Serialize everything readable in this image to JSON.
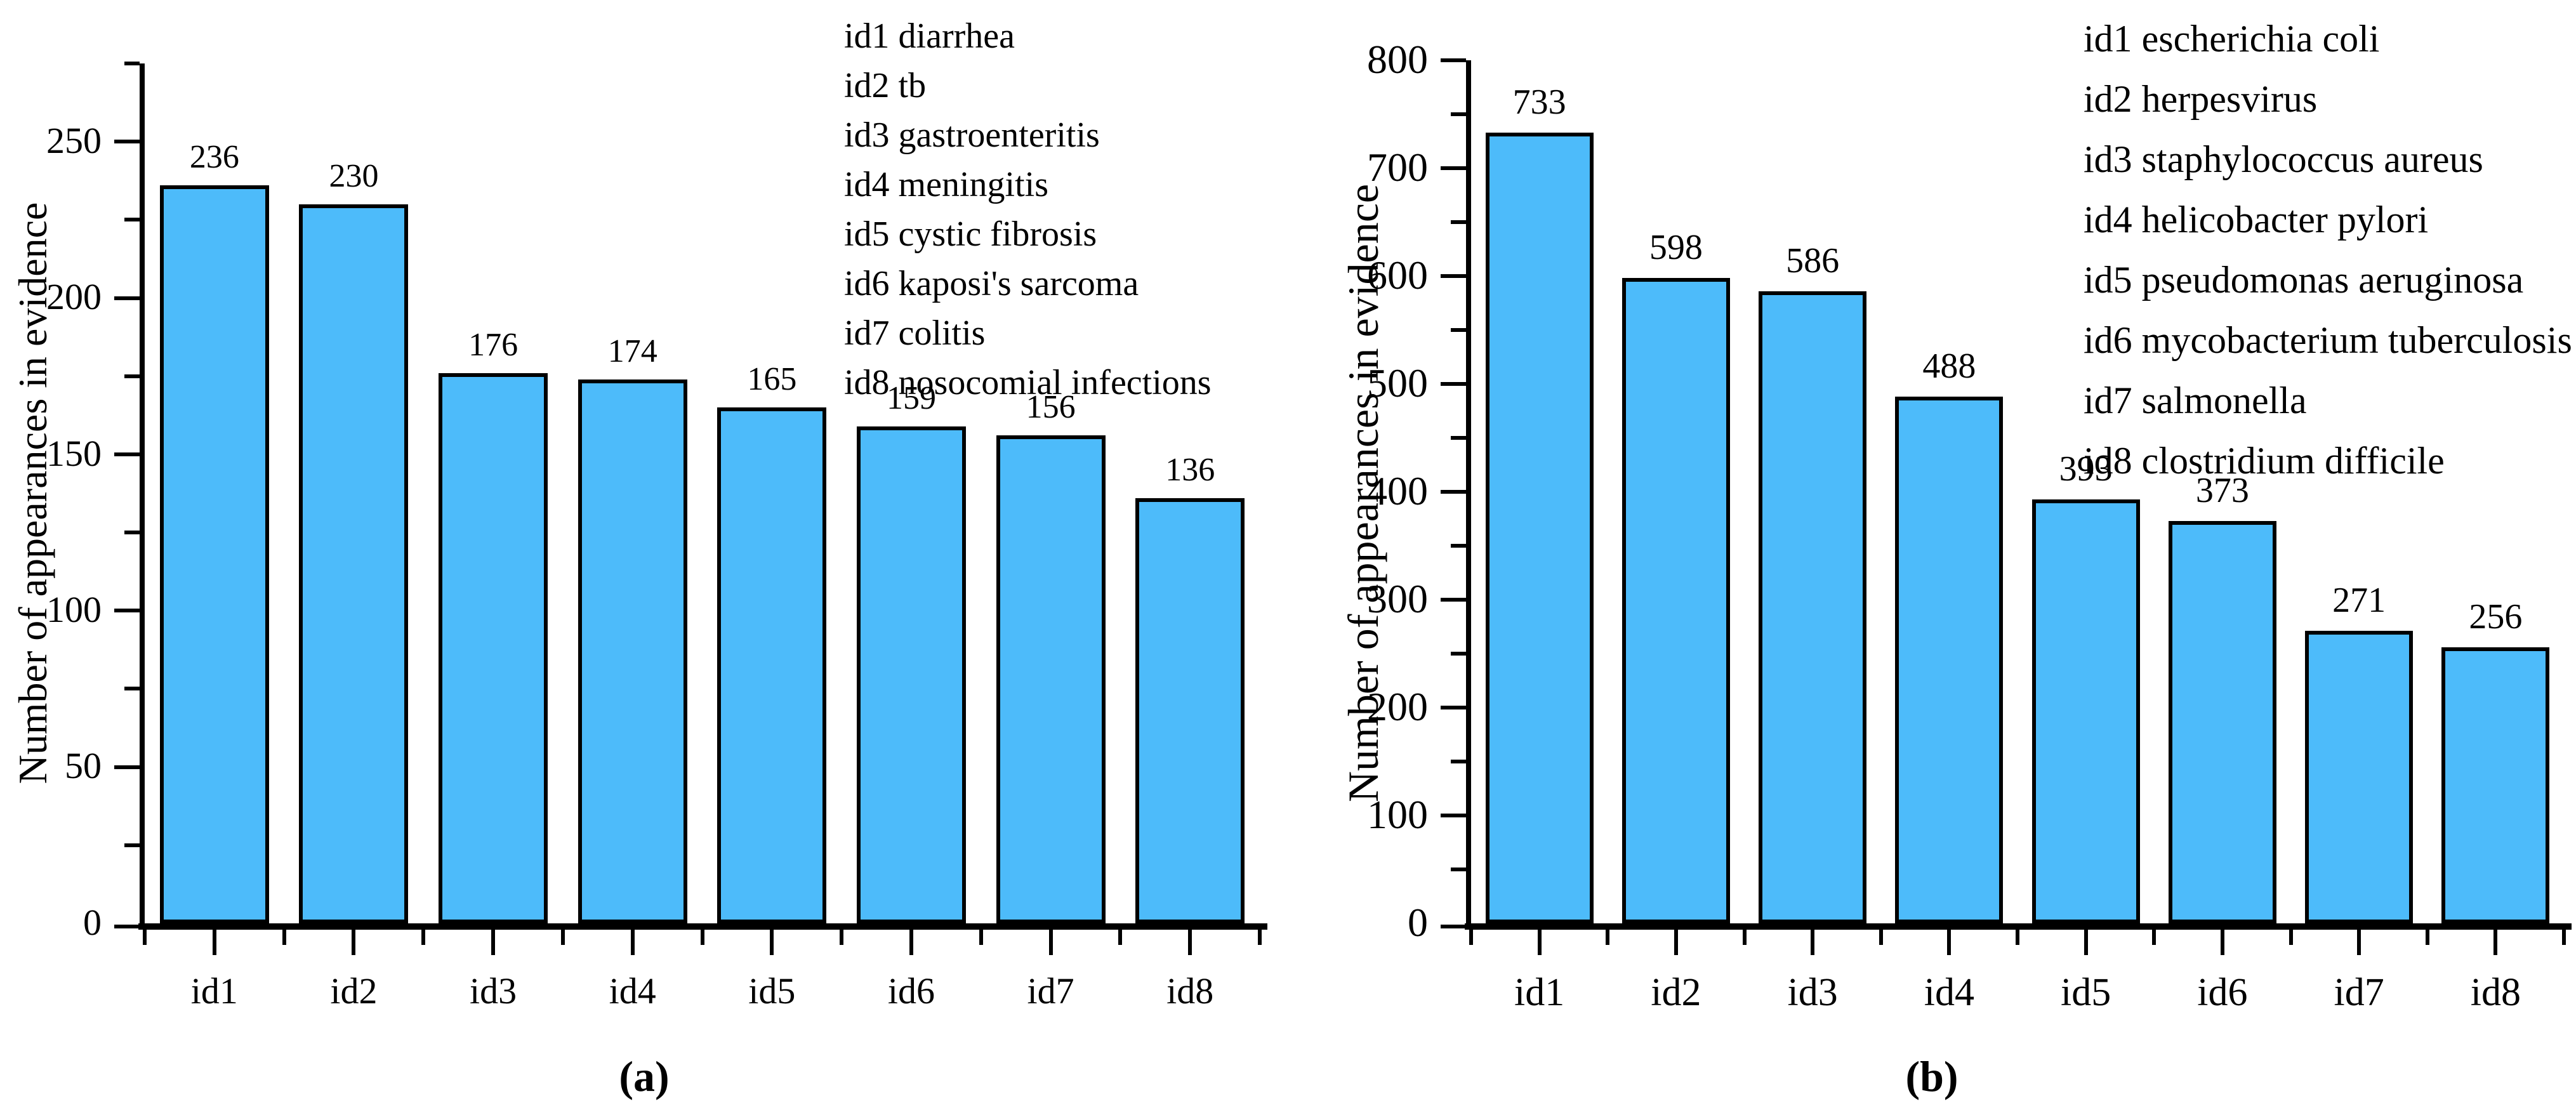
{
  "figure": {
    "background": "#FFFFFF"
  },
  "colors": {
    "bar_fill": "#4DBBFA",
    "bar_border": "#000000",
    "axis": "#000000",
    "text": "#000000"
  },
  "chart_data": [
    {
      "type": "bar",
      "panel": "a",
      "caption": "(a)",
      "ylabel": "Number of appearances in evidence",
      "xlabel": "",
      "categories": [
        "id1",
        "id2",
        "id3",
        "id4",
        "id5",
        "id6",
        "id7",
        "id8"
      ],
      "values": [
        236,
        230,
        176,
        174,
        165,
        159,
        156,
        136
      ],
      "ylim": [
        0,
        275
      ],
      "ytick_interval": 50,
      "ytick_minor_interval": 25,
      "ytick_labels": [
        "0",
        "50",
        "100",
        "150",
        "200",
        "250"
      ],
      "grid": false,
      "legend_position": "top-right-inside",
      "legend": [
        "id1 diarrhea",
        "id2 tb",
        "id3 gastroenteritis",
        "id4 meningitis",
        "id5 cystic fibrosis",
        "id6 kaposi's sarcoma",
        "id7 colitis",
        "id8 nosocomial infections"
      ]
    },
    {
      "type": "bar",
      "panel": "b",
      "caption": "(b)",
      "ylabel": "Number of appearances in evidence",
      "xlabel": "",
      "categories": [
        "id1",
        "id2",
        "id3",
        "id4",
        "id5",
        "id6",
        "id7",
        "id8"
      ],
      "values": [
        733,
        598,
        586,
        488,
        393,
        373,
        271,
        256
      ],
      "ylim": [
        0,
        800
      ],
      "ytick_interval": 100,
      "ytick_minor_interval": 50,
      "ytick_labels": [
        "0",
        "100",
        "200",
        "300",
        "400",
        "500",
        "600",
        "700",
        "800"
      ],
      "grid": false,
      "legend_position": "top-right-inside",
      "legend": [
        "id1 escherichia coli",
        "id2 herpesvirus",
        "id3 staphylococcus aureus",
        "id4 helicobacter pylori",
        "id5 pseudomonas aeruginosa",
        "id6 mycobacterium tuberculosis",
        "id7 salmonella",
        "id8 clostridium difficile"
      ]
    }
  ]
}
